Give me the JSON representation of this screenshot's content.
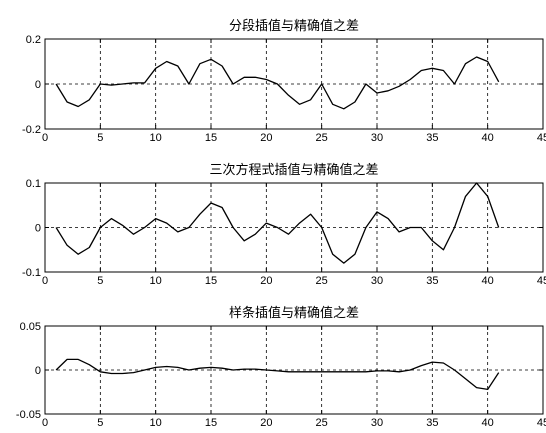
{
  "chart_data": [
    {
      "type": "line",
      "title": "分段插值与精确值之差",
      "xlim": [
        0,
        45
      ],
      "ylim": [
        -0.2,
        0.2
      ],
      "xticks": [
        0,
        5,
        10,
        15,
        20,
        25,
        30,
        35,
        40,
        45
      ],
      "yticks": [
        -0.2,
        0,
        0.2
      ],
      "xtick_labels": [
        "0",
        "5",
        "10",
        "15",
        "20",
        "25",
        "30",
        "35",
        "40",
        "45"
      ],
      "ytick_labels": [
        "-0.2",
        "0",
        "0.2"
      ],
      "grid": true,
      "series": [
        {
          "x": [
            1,
            2,
            3,
            4,
            5,
            6,
            7,
            8,
            9,
            10,
            11,
            12,
            13,
            14,
            15,
            16,
            17,
            18,
            19,
            20,
            21,
            22,
            23,
            24,
            25,
            26,
            27,
            28,
            29,
            30,
            31,
            32,
            33,
            34,
            35,
            36,
            37,
            38,
            39,
            40,
            41
          ],
          "y": [
            0,
            -0.08,
            -0.1,
            -0.07,
            0,
            -0.005,
            0,
            0.005,
            0.005,
            0.07,
            0.1,
            0.08,
            0,
            0.09,
            0.11,
            0.08,
            0,
            0.03,
            0.03,
            0.02,
            0,
            -0.05,
            -0.09,
            -0.07,
            0,
            -0.09,
            -0.11,
            -0.08,
            0,
            -0.04,
            -0.03,
            -0.01,
            0.02,
            0.06,
            0.07,
            0.06,
            0,
            0.09,
            0.12,
            0.1,
            0.01
          ]
        }
      ]
    },
    {
      "type": "line",
      "title": "三次方程式插值与精确值之差",
      "xlim": [
        0,
        45
      ],
      "ylim": [
        -0.1,
        0.1
      ],
      "xticks": [
        0,
        5,
        10,
        15,
        20,
        25,
        30,
        35,
        40,
        45
      ],
      "yticks": [
        -0.1,
        0,
        0.1
      ],
      "xtick_labels": [
        "0",
        "5",
        "10",
        "15",
        "20",
        "25",
        "30",
        "35",
        "40",
        "45"
      ],
      "ytick_labels": [
        "-0.1",
        "0",
        "0.1"
      ],
      "grid": true,
      "series": [
        {
          "x": [
            1,
            2,
            3,
            4,
            5,
            6,
            7,
            8,
            9,
            10,
            11,
            12,
            13,
            14,
            15,
            16,
            17,
            18,
            19,
            20,
            21,
            22,
            23,
            24,
            25,
            26,
            27,
            28,
            29,
            30,
            31,
            32,
            33,
            34,
            35,
            36,
            37,
            38,
            39,
            40,
            41
          ],
          "y": [
            0,
            -0.04,
            -0.06,
            -0.045,
            0,
            0.02,
            0.005,
            -0.015,
            0,
            0.02,
            0.01,
            -0.01,
            0,
            0.03,
            0.055,
            0.045,
            0,
            -0.03,
            -0.015,
            0.01,
            0,
            -0.015,
            0.01,
            0.03,
            0,
            -0.06,
            -0.08,
            -0.06,
            0,
            0.035,
            0.02,
            -0.01,
            0,
            0,
            -0.03,
            -0.05,
            0,
            0.07,
            0.1,
            0.07,
            0
          ]
        }
      ]
    },
    {
      "type": "line",
      "title": "样条插值与精确值之差",
      "xlim": [
        0,
        45
      ],
      "ylim": [
        -0.05,
        0.05
      ],
      "xticks": [
        0,
        5,
        10,
        15,
        20,
        25,
        30,
        35,
        40,
        45
      ],
      "yticks": [
        -0.05,
        0,
        0.05
      ],
      "xtick_labels": [
        "0",
        "5",
        "10",
        "15",
        "20",
        "25",
        "30",
        "35",
        "40",
        "45"
      ],
      "ytick_labels": [
        "-0.05",
        "0",
        "0.05"
      ],
      "grid": true,
      "series": [
        {
          "x": [
            1,
            2,
            3,
            4,
            5,
            6,
            7,
            8,
            9,
            10,
            11,
            12,
            13,
            14,
            15,
            16,
            17,
            18,
            19,
            20,
            21,
            22,
            23,
            24,
            25,
            26,
            27,
            28,
            29,
            30,
            31,
            32,
            33,
            34,
            35,
            36,
            37,
            38,
            39,
            40,
            41
          ],
          "y": [
            0,
            0.012,
            0.012,
            0.006,
            -0.002,
            -0.004,
            -0.004,
            -0.003,
            0,
            0.003,
            0.004,
            0.003,
            0,
            0.002,
            0.003,
            0.002,
            0,
            0.001,
            0.001,
            0,
            -0.001,
            -0.002,
            -0.002,
            -0.002,
            -0.002,
            -0.002,
            -0.002,
            -0.002,
            -0.002,
            -0.001,
            -0.001,
            -0.002,
            0,
            0.005,
            0.009,
            0.008,
            0,
            -0.01,
            -0.02,
            -0.022,
            -0.003
          ]
        }
      ]
    }
  ]
}
